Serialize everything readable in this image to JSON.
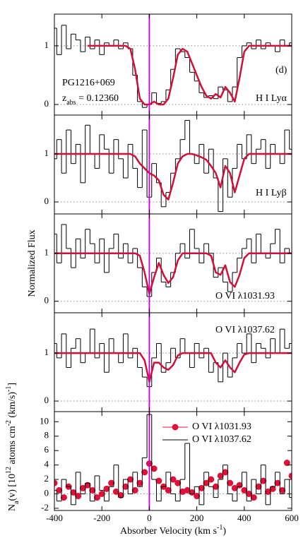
{
  "chart_data": [
    {
      "type": "step",
      "xlim": [
        -400,
        600
      ],
      "ylim": [
        -0.18,
        1.54
      ],
      "yticks": [
        0,
        1
      ],
      "reflines": [
        0,
        1
      ],
      "vline": 0,
      "annotations": [
        {
          "text": "(d)"
        },
        {
          "text": "PG1216+069"
        },
        {
          "text": "z",
          "sub": "abs",
          "rest": " = 0.12360"
        },
        {
          "text": "H I Lyα"
        }
      ],
      "x": [
        -400,
        -380,
        -360,
        -340,
        -320,
        -300,
        -280,
        -260,
        -240,
        -220,
        -200,
        -180,
        -160,
        -140,
        -120,
        -100,
        -80,
        -60,
        -40,
        -20,
        0,
        20,
        40,
        60,
        80,
        100,
        120,
        140,
        160,
        180,
        200,
        220,
        240,
        260,
        280,
        300,
        320,
        340,
        360,
        380,
        400,
        420,
        440,
        460,
        480,
        500,
        520,
        540,
        560,
        580,
        600
      ],
      "series": [
        {
          "color": "#000000",
          "values": [
            1.3,
            0.85,
            1.35,
            0.95,
            1.2,
            1.1,
            0.9,
            1.15,
            0.95,
            1.1,
            0.85,
            1.05,
            1.0,
            1.1,
            0.95,
            1.05,
            0.95,
            0.5,
            0.05,
            -0.05,
            0,
            0.2,
            0.02,
            0.05,
            0.25,
            0.6,
            0.95,
            0.9,
            0.8,
            0.55,
            0.4,
            0.2,
            0.12,
            0.15,
            0.1,
            0.3,
            0.25,
            0.05,
            0.3,
            0.8,
            1.0,
            1.05,
            0.95,
            1.1,
            0.95,
            1.05,
            1.0,
            0.9,
            1.1,
            1.0,
            1.05
          ]
        },
        {
          "color": "#d0103a",
          "values": [
            null,
            null,
            null,
            null,
            null,
            null,
            null,
            1,
            1,
            1,
            1,
            1,
            1,
            1,
            1,
            1,
            0.95,
            0.6,
            0.1,
            0,
            0,
            0.05,
            0,
            0,
            0.1,
            0.45,
            0.85,
            0.95,
            0.9,
            0.7,
            0.5,
            0.3,
            0.15,
            0.1,
            0.18,
            0.12,
            0.3,
            0.2,
            0.05,
            0.45,
            0.9,
            1,
            1,
            1,
            1,
            1,
            1,
            1,
            1,
            1,
            1
          ]
        }
      ]
    },
    {
      "type": "step",
      "xlim": [
        -400,
        600
      ],
      "ylim": [
        -0.25,
        1.81
      ],
      "yticks": [
        0,
        1
      ],
      "reflines": [
        0,
        1
      ],
      "vline": 0,
      "annotations": [
        {
          "text": "H I Lyβ"
        }
      ],
      "x": [
        -400,
        -380,
        -360,
        -340,
        -320,
        -300,
        -280,
        -260,
        -240,
        -220,
        -200,
        -180,
        -160,
        -140,
        -120,
        -100,
        -80,
        -60,
        -40,
        -20,
        0,
        20,
        40,
        60,
        80,
        100,
        120,
        140,
        160,
        180,
        200,
        220,
        240,
        260,
        280,
        300,
        320,
        340,
        360,
        380,
        400,
        420,
        440,
        460,
        480,
        500,
        520,
        540,
        560,
        580,
        600
      ],
      "series": [
        {
          "color": "#000000",
          "values": [
            0.9,
            1.3,
            0.6,
            1.5,
            0.8,
            1.2,
            0.4,
            1.6,
            1.0,
            0.7,
            1.4,
            1.1,
            0.6,
            1.3,
            0.9,
            0.5,
            1.2,
            0.7,
            0.3,
            1.5,
            0.1,
            0.8,
            0.4,
            -0.1,
            0.2,
            0.6,
            0.9,
            1.3,
            1.7,
            1.0,
            0.8,
            1.2,
            0.6,
            1.1,
            0.5,
            -0.2,
            0.9,
            0.1,
            0.7,
            1.2,
            0.9,
            1.4,
            0.8,
            1.1,
            1.3,
            0.7,
            1.2,
            1.0,
            0.8,
            1.5,
            1.1
          ]
        },
        {
          "color": "#d0103a",
          "values": [
            1,
            1,
            1,
            1,
            1,
            1,
            1,
            1,
            1,
            1,
            1,
            1,
            1,
            1,
            1,
            1,
            1,
            0.95,
            0.8,
            0.7,
            0.6,
            0.55,
            0.45,
            0.15,
            0.05,
            0.4,
            0.8,
            0.95,
            1,
            1,
            0.97,
            0.93,
            0.88,
            0.75,
            0.6,
            0.3,
            0.75,
            0.6,
            0.2,
            0.55,
            0.9,
            1,
            1,
            1,
            1,
            1,
            1,
            1,
            1,
            1,
            1
          ]
        }
      ]
    },
    {
      "type": "step",
      "xlim": [
        -400,
        600
      ],
      "ylim": [
        -0.24,
        1.82
      ],
      "yticks": [
        0,
        1
      ],
      "reflines": [
        0,
        1
      ],
      "vline": 0,
      "ylabel": "Normalized Flux",
      "annotations": [
        {
          "text": "O VI λ1031.93"
        }
      ],
      "x": [
        -400,
        -380,
        -360,
        -340,
        -320,
        -300,
        -280,
        -260,
        -240,
        -220,
        -200,
        -180,
        -160,
        -140,
        -120,
        -100,
        -80,
        -60,
        -40,
        -20,
        0,
        20,
        40,
        60,
        80,
        100,
        120,
        140,
        160,
        180,
        200,
        220,
        240,
        260,
        280,
        300,
        320,
        340,
        360,
        380,
        400,
        420,
        440,
        460,
        480,
        500,
        520,
        540,
        560,
        580,
        600
      ],
      "series": [
        {
          "color": "#000000",
          "values": [
            1.4,
            0.8,
            1.6,
            1.1,
            0.7,
            1.3,
            0.9,
            1.5,
            1.2,
            0.8,
            1.3,
            0.6,
            1.1,
            1.4,
            0.9,
            1.2,
            0.8,
            1.1,
            0.7,
            0.3,
            0.1,
            0.6,
            0.9,
            0.4,
            0.3,
            0.6,
            1.0,
            1.2,
            0.9,
            1.5,
            1.1,
            0.8,
            1.2,
            1.0,
            0.5,
            0.7,
            0.4,
            0.2,
            0.6,
            0.9,
            1.1,
            1.3,
            0.8,
            1.4,
            1.0,
            0.9,
            1.2,
            1.5,
            0.8,
            1.1,
            1.0
          ]
        },
        {
          "color": "#d0103a",
          "values": [
            1,
            1,
            1,
            1,
            1,
            1,
            1,
            1,
            1,
            1,
            1,
            1,
            1,
            1,
            1,
            1,
            1,
            1,
            0.95,
            0.6,
            0.15,
            0.5,
            0.8,
            0.55,
            0.38,
            0.5,
            0.85,
            1,
            1,
            1,
            1,
            1,
            1,
            0.95,
            0.6,
            0.55,
            0.75,
            0.4,
            0.3,
            0.55,
            0.9,
            1,
            1,
            1,
            1,
            1,
            1,
            1,
            1,
            1,
            1
          ]
        }
      ]
    },
    {
      "type": "step",
      "xlim": [
        -400,
        600
      ],
      "ylim": [
        -0.22,
        1.84
      ],
      "yticks": [
        0,
        1
      ],
      "reflines": [
        0,
        1
      ],
      "vline": 0,
      "annotations": [
        {
          "text": "O VI λ1037.62"
        }
      ],
      "x": [
        -400,
        -380,
        -360,
        -340,
        -320,
        -300,
        -280,
        -260,
        -240,
        -220,
        -200,
        -180,
        -160,
        -140,
        -120,
        -100,
        -80,
        -60,
        -40,
        -20,
        0,
        20,
        40,
        60,
        80,
        100,
        120,
        140,
        160,
        180,
        200,
        220,
        240,
        260,
        280,
        300,
        320,
        340,
        360,
        380,
        400,
        420,
        440,
        460,
        480,
        500,
        520,
        540,
        560,
        580,
        600
      ],
      "series": [
        {
          "color": "#000000",
          "values": [
            1.2,
            0.9,
            1.4,
            0.7,
            1.1,
            1.3,
            0.8,
            1.0,
            1.5,
            0.9,
            1.2,
            0.6,
            1.3,
            1.0,
            0.8,
            1.4,
            0.9,
            1.1,
            0.7,
            0.5,
            0.3,
            0.9,
            1.2,
            0.6,
            0.8,
            1.1,
            0.9,
            1.3,
            1.0,
            0.7,
            1.2,
            0.9,
            1.1,
            0.6,
            0.8,
            0.4,
            1.0,
            0.5,
            0.9,
            1.2,
            1.0,
            1.4,
            0.8,
            1.2,
            1.1,
            0.9,
            1.3,
            1.0,
            1.5,
            1.1,
            1.2
          ]
        },
        {
          "color": "#d0103a",
          "values": [
            1,
            1,
            1,
            1,
            1,
            1,
            1,
            1,
            1,
            1,
            1,
            1,
            1,
            1,
            1,
            1,
            1,
            1,
            1,
            0.85,
            0.4,
            0.8,
            0.8,
            0.7,
            0.65,
            0.75,
            0.95,
            1,
            1,
            1,
            1,
            1,
            1,
            1,
            0.8,
            0.7,
            0.85,
            0.7,
            0.6,
            0.8,
            0.97,
            1,
            1,
            1,
            1,
            1,
            1,
            1,
            1,
            1,
            1
          ]
        }
      ]
    },
    {
      "type": "aod",
      "xlim": [
        -400,
        600
      ],
      "ylim": [
        -2.3,
        11.4
      ],
      "yticks": [
        -2,
        0,
        2,
        4,
        6,
        8,
        10
      ],
      "reflines": [
        0
      ],
      "vline": 0,
      "xticks": [
        -400,
        -200,
        0,
        200,
        400,
        600
      ],
      "legend": "upper right",
      "xlabel": [
        {
          "text": "Absorber Velocity (km s"
        },
        {
          "text": "-1",
          "style": "sup"
        },
        {
          "text": ")"
        }
      ],
      "ylabel": [
        {
          "text": "N"
        },
        {
          "text": "a",
          "style": "sub"
        },
        {
          "text": "(v) [10"
        },
        {
          "text": "12",
          "style": "sup"
        },
        {
          "text": " atoms cm"
        },
        {
          "text": "-2",
          "style": "sup"
        },
        {
          "text": " (km/s)"
        },
        {
          "text": "-1",
          "style": "sup"
        },
        {
          "text": "]"
        }
      ],
      "x": [
        -400,
        -380,
        -360,
        -340,
        -320,
        -300,
        -280,
        -260,
        -240,
        -220,
        -200,
        -180,
        -160,
        -140,
        -120,
        -100,
        -80,
        -60,
        -40,
        -20,
        0,
        20,
        40,
        60,
        80,
        100,
        120,
        140,
        160,
        180,
        200,
        220,
        240,
        260,
        280,
        300,
        320,
        340,
        360,
        380,
        400,
        420,
        440,
        460,
        480,
        500,
        520,
        540,
        560,
        580,
        600
      ],
      "series": [
        {
          "name": "O VI λ1031.93",
          "color": "#e0103a",
          "marker": "dot",
          "values": [
            1.5,
            0.5,
            -0.5,
            1,
            0.2,
            -0.3,
            0.8,
            1.2,
            0.5,
            -0.5,
            0,
            0.7,
            1.5,
            0.3,
            -0.2,
            1,
            2,
            0.5,
            1.5,
            3,
            4.2,
            3.5,
            1.8,
            1,
            0.5,
            2,
            1.5,
            0.3,
            0.5,
            0.2,
            -0.3,
            0.8,
            1.5,
            2,
            1,
            2.5,
            3,
            1.5,
            0.8,
            1.2,
            0.5,
            0,
            -0.5,
            1,
            1.8,
            0.3,
            0.7,
            1.5,
            0.5,
            4.3,
            2.5
          ]
        },
        {
          "name": "O VI λ1037.62",
          "color": "#000000",
          "marker": "step",
          "values": [
            0.5,
            -1,
            2,
            1,
            -1.5,
            3,
            0,
            1.5,
            -1,
            2.5,
            0.5,
            -1,
            1,
            4,
            -0.5,
            2,
            0,
            3,
            1,
            5,
            11,
            2,
            -1,
            1,
            3,
            0,
            -1,
            2,
            7,
            0,
            1,
            -1.5,
            3,
            1,
            -0.5,
            2,
            4,
            0,
            -1,
            1,
            3,
            -1,
            2,
            0,
            4,
            -1.5,
            1,
            3,
            0,
            2,
            -0.5
          ]
        }
      ]
    }
  ]
}
